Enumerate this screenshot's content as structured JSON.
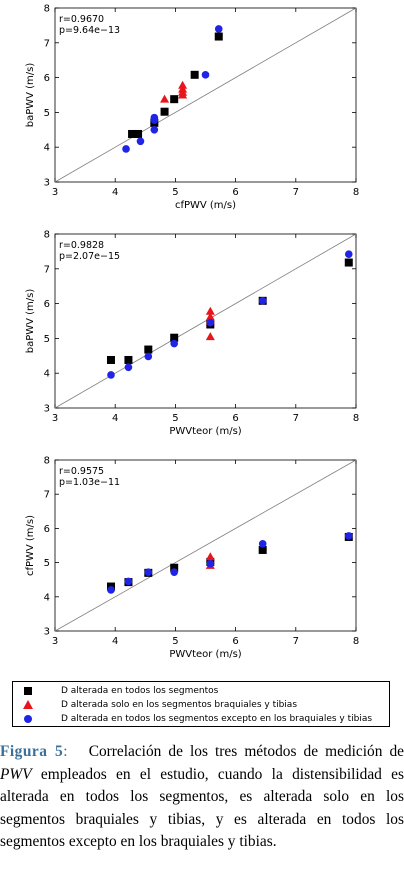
{
  "colors": {
    "black": "#000000",
    "red": "#e8161c",
    "blue": "#1f24e6",
    "caption_label": "#3a6f9a"
  },
  "chart_data": [
    {
      "type": "scatter",
      "xlabel": "cfPWV (m/s)",
      "ylabel": "baPWV (m/s)",
      "xlim": [
        3,
        8
      ],
      "ylim": [
        3,
        8
      ],
      "xticks": [
        "3",
        "4",
        "5",
        "6",
        "7",
        "8"
      ],
      "yticks": [
        "3",
        "4",
        "5",
        "6",
        "7",
        "8"
      ],
      "annotations": [
        "r=0.9670",
        "p=9.64e−13"
      ],
      "identity_line": true,
      "series": [
        {
          "marker": "square",
          "color": "#000000",
          "points": [
            [
              4.28,
              4.38
            ],
            [
              4.38,
              4.38
            ],
            [
              4.65,
              4.7
            ],
            [
              4.82,
              5.02
            ],
            [
              4.98,
              5.38
            ],
            [
              5.32,
              6.08
            ],
            [
              5.72,
              7.18
            ]
          ]
        },
        {
          "marker": "triangle",
          "color": "#e8161c",
          "points": [
            [
              4.82,
              5.38
            ],
            [
              5.12,
              5.5
            ],
            [
              5.12,
              5.58
            ],
            [
              5.12,
              5.67
            ],
            [
              5.12,
              5.78
            ]
          ]
        },
        {
          "marker": "circle",
          "color": "#1f24e6",
          "points": [
            [
              4.18,
              3.95
            ],
            [
              4.42,
              4.17
            ],
            [
              4.65,
              4.5
            ],
            [
              4.65,
              4.78
            ],
            [
              4.65,
              4.85
            ],
            [
              5.5,
              6.08
            ],
            [
              5.72,
              7.4
            ]
          ]
        }
      ]
    },
    {
      "type": "scatter",
      "xlabel": "PWVteor (m/s)",
      "ylabel": "baPWV (m/s)",
      "xlim": [
        3,
        8
      ],
      "ylim": [
        3,
        8
      ],
      "xticks": [
        "3",
        "4",
        "5",
        "6",
        "7",
        "8"
      ],
      "yticks": [
        "3",
        "4",
        "5",
        "6",
        "7",
        "8"
      ],
      "annotations": [
        "r=0.9828",
        "p=2.07e−15"
      ],
      "identity_line": true,
      "series": [
        {
          "marker": "square",
          "color": "#000000",
          "points": [
            [
              3.93,
              4.38
            ],
            [
              4.22,
              4.38
            ],
            [
              4.55,
              4.68
            ],
            [
              4.98,
              5.02
            ],
            [
              5.58,
              5.4
            ],
            [
              6.45,
              6.08
            ],
            [
              7.88,
              7.18
            ]
          ]
        },
        {
          "marker": "triangle",
          "color": "#e8161c",
          "points": [
            [
              5.58,
              5.05
            ],
            [
              5.58,
              5.5
            ],
            [
              5.58,
              5.62
            ],
            [
              5.58,
              5.78
            ]
          ]
        },
        {
          "marker": "circle",
          "color": "#1f24e6",
          "points": [
            [
              3.93,
              3.95
            ],
            [
              4.22,
              4.17
            ],
            [
              4.55,
              4.48
            ],
            [
              4.98,
              4.85
            ],
            [
              5.58,
              5.45
            ],
            [
              6.45,
              6.08
            ],
            [
              7.88,
              7.42
            ]
          ]
        }
      ]
    },
    {
      "type": "scatter",
      "xlabel": "PWVteor (m/s)",
      "ylabel": "cfPWV (m/s)",
      "xlim": [
        3,
        8
      ],
      "ylim": [
        3,
        8
      ],
      "xticks": [
        "3",
        "4",
        "5",
        "6",
        "7",
        "8"
      ],
      "yticks": [
        "3",
        "4",
        "5",
        "6",
        "7",
        "8"
      ],
      "annotations": [
        "r=0.9575",
        "p=1.03e−11"
      ],
      "identity_line": true,
      "series": [
        {
          "marker": "square",
          "color": "#000000",
          "points": [
            [
              3.93,
              4.3
            ],
            [
              4.22,
              4.43
            ],
            [
              4.55,
              4.7
            ],
            [
              4.98,
              4.85
            ],
            [
              5.58,
              5.02
            ],
            [
              6.45,
              5.37
            ],
            [
              7.88,
              5.75
            ]
          ]
        },
        {
          "marker": "triangle",
          "color": "#e8161c",
          "points": [
            [
              5.58,
              4.92
            ],
            [
              5.58,
              5.17
            ]
          ]
        },
        {
          "marker": "circle",
          "color": "#1f24e6",
          "points": [
            [
              3.93,
              4.2
            ],
            [
              4.22,
              4.45
            ],
            [
              4.55,
              4.72
            ],
            [
              4.98,
              4.72
            ],
            [
              5.58,
              4.97
            ],
            [
              6.45,
              5.55
            ],
            [
              7.88,
              5.78
            ]
          ]
        }
      ]
    }
  ],
  "legend": [
    {
      "marker": "square",
      "color": "#000000",
      "label": "D alterada en todos los segmentos"
    },
    {
      "marker": "triangle",
      "color": "#e8161c",
      "label": "D alterada solo en los segmentos braquiales y tibias"
    },
    {
      "marker": "circle",
      "color": "#1f24e6",
      "label": "D alterada en todos los segmentos excepto en los braquiales y tibias"
    }
  ],
  "caption": {
    "label": "Figura 5",
    "colon": ":",
    "text_before": "Correlación de los tres métodos de medición de ",
    "italic": "PWV",
    "text_after": " empleados en el estudio, cuando la distensibilidad es alterada en todos los segmentos, es alterada solo en los segmentos braquiales y tibias, y es alterada en todos los segmentos excepto en los braquiales y tibias."
  }
}
